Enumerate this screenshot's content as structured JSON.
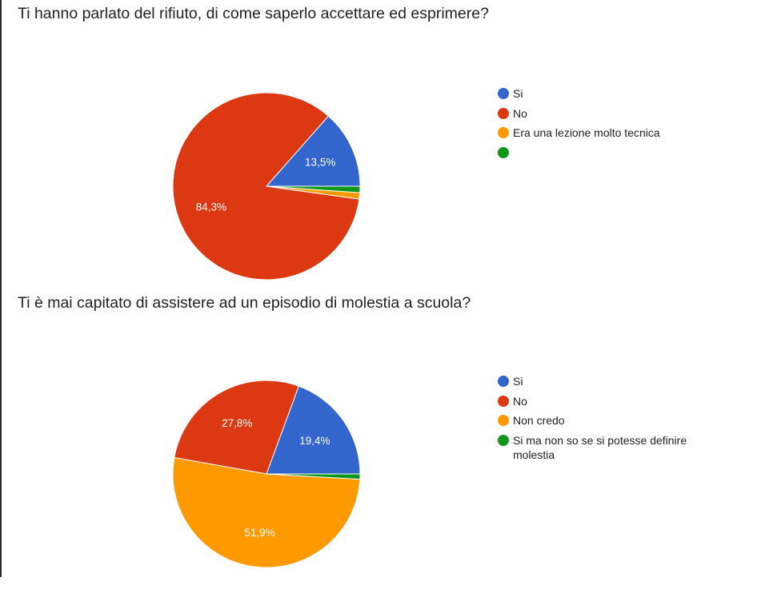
{
  "chart_data": [
    {
      "type": "pie",
      "title": "Ti hanno parlato del rifiuto, di come saperlo accettare ed esprimere?",
      "categories": [
        "Si",
        "No",
        "Era una lezione molto tecnica",
        ""
      ],
      "values": [
        13.5,
        84.3,
        1.1,
        1.1
      ],
      "colors": [
        "#3366cc",
        "#dc3912",
        "#ff9900",
        "#109618"
      ],
      "data_labels": [
        "13,5%",
        "84,3%",
        "",
        ""
      ],
      "legend_position": "right"
    },
    {
      "type": "pie",
      "title": "Ti è mai capitato di assistere ad un episodio di molestia a scuola?",
      "categories": [
        "Si",
        "No",
        "Non credo",
        "Si ma non so se si potesse definire molestia"
      ],
      "values": [
        19.4,
        27.8,
        51.9,
        0.9
      ],
      "colors": [
        "#3366cc",
        "#dc3912",
        "#ff9900",
        "#109618"
      ],
      "data_labels": [
        "19,4%",
        "27,8%",
        "51,9%",
        ""
      ],
      "legend_position": "right"
    }
  ]
}
